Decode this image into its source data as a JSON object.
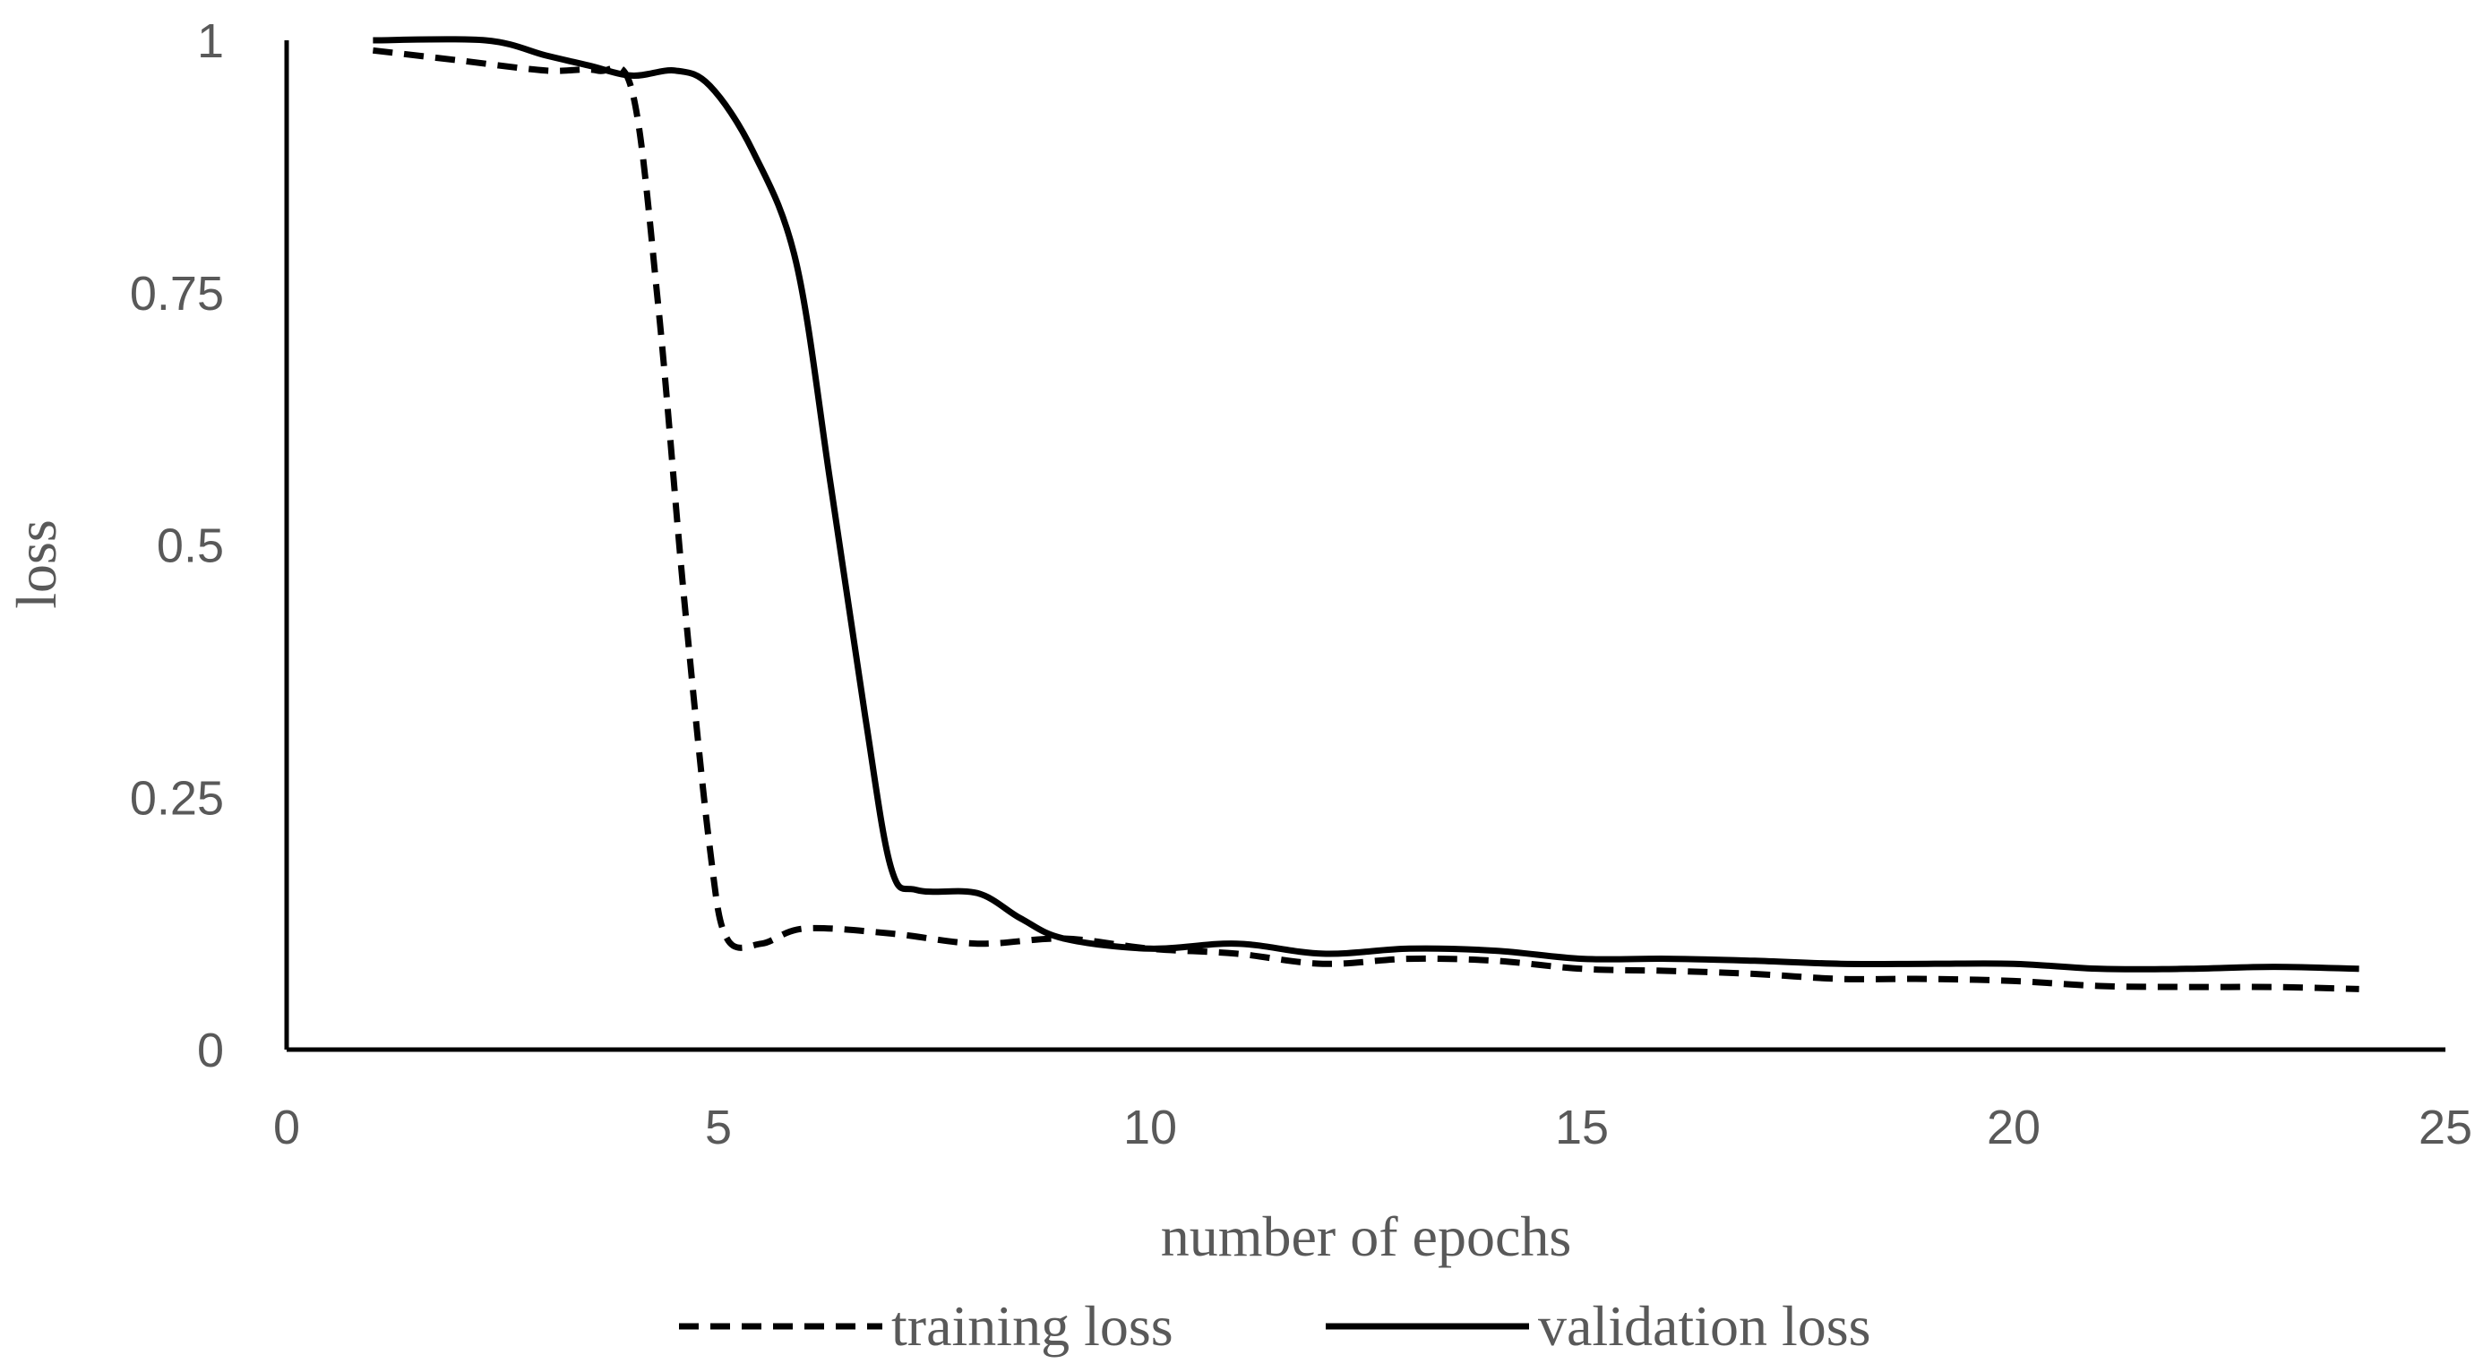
{
  "chart_data": {
    "type": "line",
    "title": "",
    "xlabel": "number of epochs",
    "ylabel": "loss",
    "xlim": [
      0,
      25
    ],
    "ylim": [
      0,
      1
    ],
    "x_ticks": [
      0,
      5,
      10,
      15,
      20,
      25
    ],
    "y_ticks": [
      0,
      0.25,
      0.5,
      0.75,
      1
    ],
    "x_tick_labels": [
      "0",
      "5",
      "10",
      "15",
      "20",
      "25"
    ],
    "y_tick_labels": [
      "0",
      "0.25",
      "0.5",
      "0.75",
      "1"
    ],
    "grid": false,
    "legend_position": "bottom",
    "series": [
      {
        "name": "training loss",
        "style": "dashed",
        "color": "#000000",
        "x": [
          1,
          2,
          3,
          3.6,
          4,
          4.3,
          4.6,
          4.9,
          5.1,
          5.5,
          6,
          7,
          8,
          9,
          10,
          11,
          12,
          13,
          14,
          15,
          16,
          17,
          18,
          19,
          20,
          21,
          22,
          23,
          24
        ],
        "y": [
          0.99,
          0.98,
          0.97,
          0.97,
          0.95,
          0.74,
          0.45,
          0.2,
          0.11,
          0.105,
          0.12,
          0.115,
          0.105,
          0.11,
          0.1,
          0.095,
          0.085,
          0.09,
          0.088,
          0.08,
          0.078,
          0.075,
          0.07,
          0.07,
          0.068,
          0.063,
          0.062,
          0.062,
          0.06
        ]
      },
      {
        "name": "validation loss",
        "style": "solid",
        "color": "#000000",
        "x": [
          1,
          2.3,
          3,
          3.5,
          4,
          4.5,
          4.9,
          5.4,
          5.9,
          6.3,
          6.7,
          7,
          7.3,
          8,
          8.5,
          9,
          10,
          11,
          12,
          13,
          14,
          15,
          16,
          17,
          18,
          19,
          20,
          21,
          22,
          23,
          24
        ],
        "y": [
          1,
          1,
          0.985,
          0.975,
          0.965,
          0.97,
          0.955,
          0.89,
          0.78,
          0.56,
          0.33,
          0.18,
          0.158,
          0.155,
          0.13,
          0.11,
          0.1,
          0.105,
          0.095,
          0.1,
          0.098,
          0.09,
          0.09,
          0.088,
          0.085,
          0.085,
          0.085,
          0.08,
          0.08,
          0.082,
          0.08
        ]
      }
    ]
  }
}
